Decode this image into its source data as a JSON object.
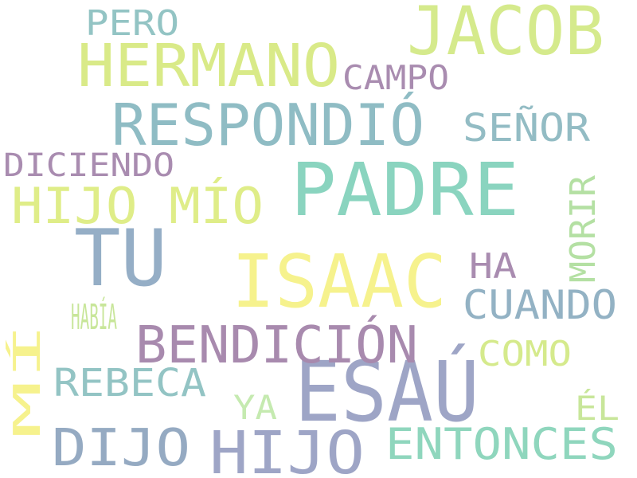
{
  "words": [
    {
      "id": "jacob",
      "text": "JACOB",
      "color": "#d5ea8c"
    },
    {
      "id": "padre",
      "text": "PADRE",
      "color": "#8ad4bf"
    },
    {
      "id": "esau",
      "text": "ESAÚ",
      "color": "#9ea5c6"
    },
    {
      "id": "isaac",
      "text": "ISAAC",
      "color": "#f6f28d"
    },
    {
      "id": "tu",
      "text": "TU",
      "color": "#95aec6"
    },
    {
      "id": "hermano",
      "text": "HERMANO",
      "color": "#d9ea88"
    },
    {
      "id": "respondio",
      "text": "RESPONDIÓ",
      "color": "#8fbcc4"
    },
    {
      "id": "bendicion",
      "text": "BENDICIÓN",
      "color": "#a88aae"
    },
    {
      "id": "hijo-mio",
      "text": "HIJO MÍO",
      "color": "#dfed88"
    },
    {
      "id": "hijo",
      "text": "HIJO",
      "color": "#9ea5c6"
    },
    {
      "id": "dijo",
      "text": "DIJO",
      "color": "#95aac2"
    },
    {
      "id": "entonces",
      "text": "ENTONCES",
      "color": "#8fd6bd"
    },
    {
      "id": "cuando",
      "text": "CUANDO",
      "color": "#93b2c4"
    },
    {
      "id": "rebeca",
      "text": "REBECA",
      "color": "#93c4c4"
    },
    {
      "id": "senor",
      "text": "SEÑOR",
      "color": "#93bcc4"
    },
    {
      "id": "diciendo",
      "text": "DICIENDO",
      "color": "#a98cb0"
    },
    {
      "id": "campo",
      "text": "CAMPO",
      "color": "#a98cb0"
    },
    {
      "id": "pero",
      "text": "PERO",
      "color": "#93c4c4"
    },
    {
      "id": "como",
      "text": "COMO",
      "color": "#d5ea8c"
    },
    {
      "id": "ha",
      "text": "HA",
      "color": "#a98cb0"
    },
    {
      "id": "morir",
      "text": "MORIR",
      "color": "#b4e0a3"
    },
    {
      "id": "habia",
      "text": "HABÍA",
      "color": "#c8e69a"
    },
    {
      "id": "mi",
      "text": "MÍ",
      "color": "#f6f28d"
    },
    {
      "id": "ya",
      "text": "YA",
      "color": "#c5eab0"
    },
    {
      "id": "el",
      "text": "ÉL",
      "color": "#c8e69a"
    }
  ]
}
